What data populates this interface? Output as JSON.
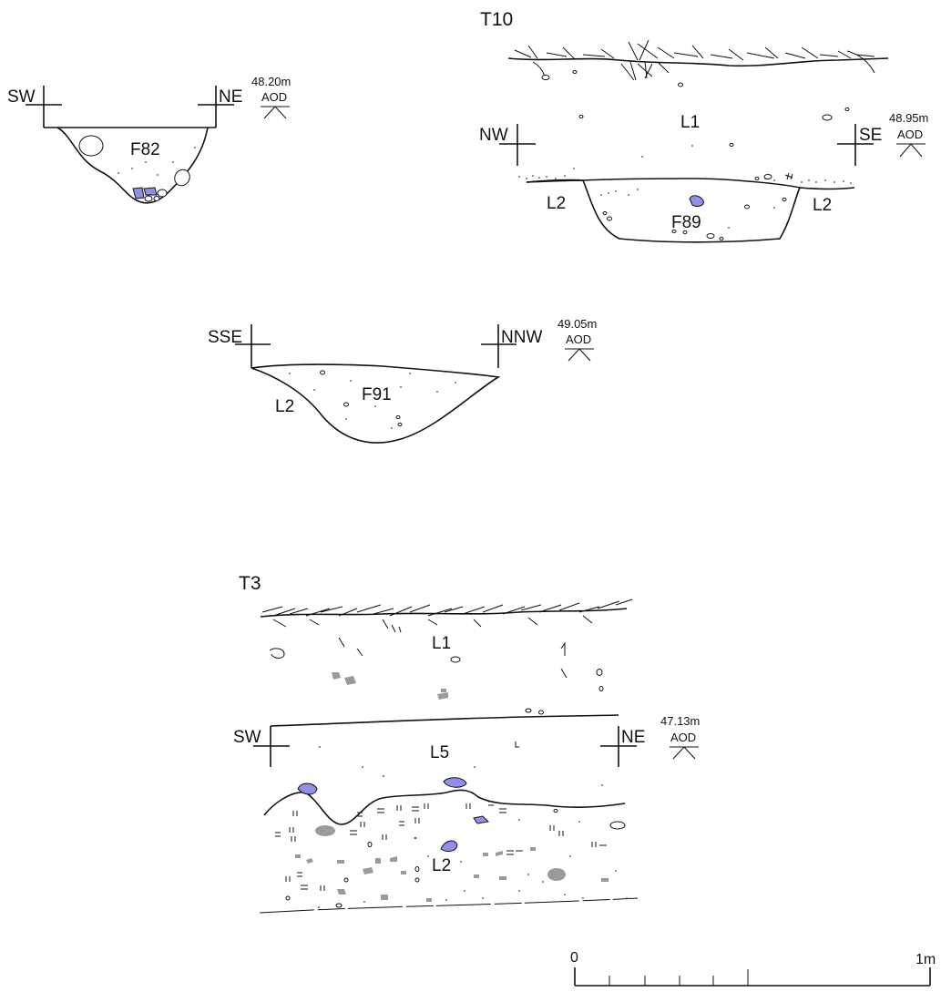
{
  "sections": {
    "f82": {
      "label": "F82",
      "left": "SW",
      "right": "NE",
      "level": "48.20m",
      "datum": "AOD"
    },
    "t10": {
      "title": "T10",
      "left": "NW",
      "right": "SE",
      "level": "48.95m",
      "datum": "AOD",
      "layer_top": "L1",
      "layer_left": "L2",
      "layer_right": "L2",
      "feature": "F89"
    },
    "f91": {
      "label": "F91",
      "left": "SSE",
      "right": "NNW",
      "level": "49.05m",
      "datum": "AOD",
      "layer": "L2"
    },
    "t3": {
      "title": "T3",
      "left": "SW",
      "right": "NE",
      "level": "47.13m",
      "datum": "AOD",
      "layer_top": "L1",
      "layer_mid": "L5",
      "layer_bottom": "L2"
    }
  },
  "scale_bar": {
    "start": "0",
    "end": "1m",
    "divisions": 5
  },
  "colors": {
    "line": "#111111",
    "blue_stone": "#8f8fe8",
    "grey_inclusion": "#9a9a9a"
  }
}
